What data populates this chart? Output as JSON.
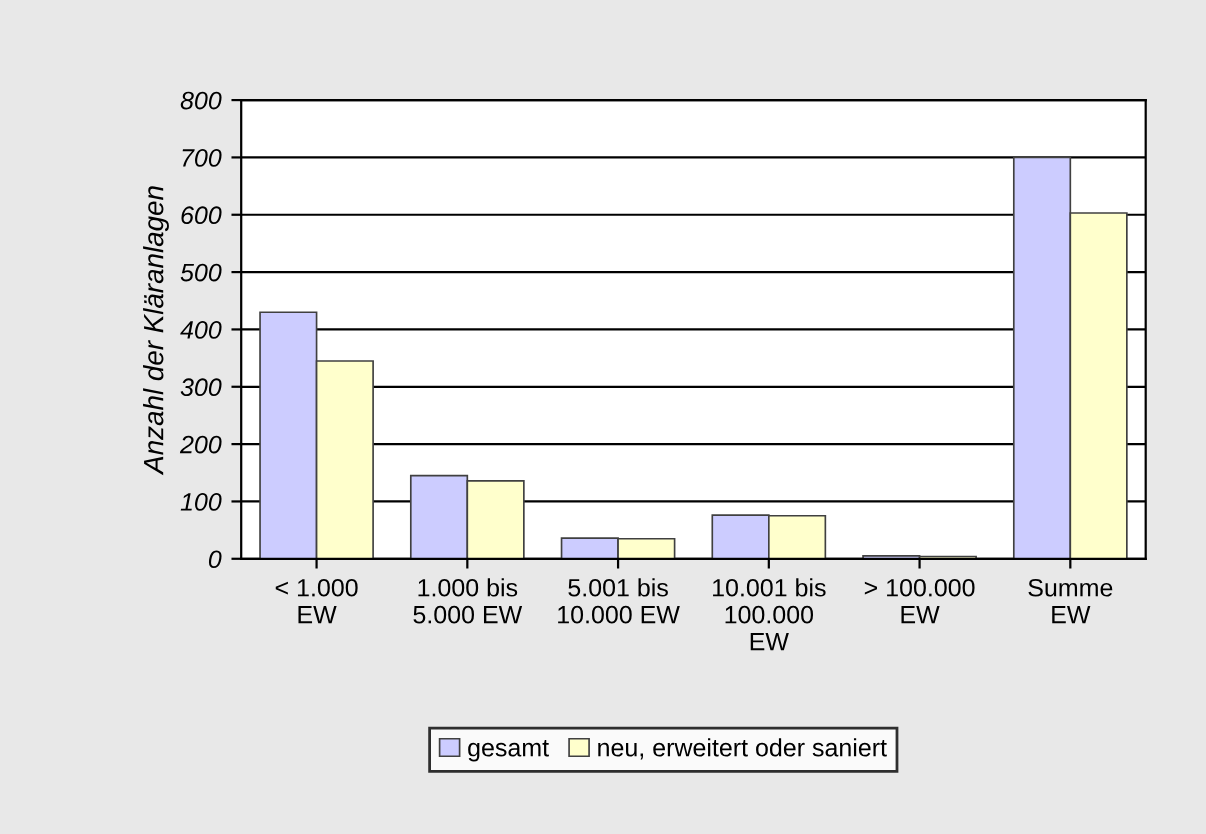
{
  "chart_data": {
    "type": "bar",
    "ylabel": "Anzahl der Kläranlagen",
    "categories": [
      "< 1.000\nEW",
      "1.000 bis\n5.000 EW",
      "5.001 bis\n10.000 EW",
      "10.001 bis\n100.000\nEW",
      "> 100.000\nEW",
      "Summe\nEW"
    ],
    "series": [
      {
        "name": "gesamt",
        "color": "#ccccff",
        "values": [
          430,
          145,
          36,
          76,
          5,
          700
        ]
      },
      {
        "name": "neu, erweitert oder saniert",
        "color": "#ffffcc",
        "values": [
          345,
          136,
          35,
          75,
          4,
          603
        ]
      }
    ],
    "ylim": [
      0,
      800
    ],
    "yticks": [
      0,
      100,
      200,
      300,
      400,
      500,
      600,
      700,
      800
    ],
    "grid": "y",
    "legend": "bottom"
  }
}
